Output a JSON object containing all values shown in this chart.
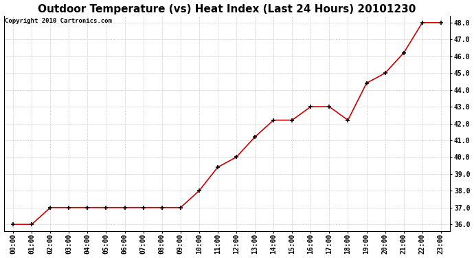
{
  "title": "Outdoor Temperature (vs) Heat Index (Last 24 Hours) 20101230",
  "copyright": "Copyright 2010 Cartronics.com",
  "x_labels": [
    "00:00",
    "01:00",
    "02:00",
    "03:00",
    "04:00",
    "05:00",
    "06:00",
    "07:00",
    "08:00",
    "09:00",
    "10:00",
    "11:00",
    "12:00",
    "13:00",
    "14:00",
    "15:00",
    "16:00",
    "17:00",
    "18:00",
    "19:00",
    "20:00",
    "21:00",
    "22:00",
    "23:00"
  ],
  "y_values": [
    36.0,
    36.0,
    37.0,
    37.0,
    37.0,
    37.0,
    37.0,
    37.0,
    37.0,
    37.0,
    38.0,
    39.4,
    40.0,
    41.2,
    42.2,
    42.2,
    43.0,
    43.0,
    42.2,
    44.4,
    45.0,
    46.2,
    48.0,
    48.0
  ],
  "line_color": "#cc0000",
  "marker": "+",
  "marker_size": 5,
  "marker_color": "#000000",
  "bg_color": "#ffffff",
  "grid_color": "#cccccc",
  "ylim": [
    35.6,
    48.4
  ],
  "yticks": [
    36.0,
    37.0,
    38.0,
    39.0,
    40.0,
    41.0,
    42.0,
    43.0,
    44.0,
    45.0,
    46.0,
    47.0,
    48.0
  ],
  "title_fontsize": 11,
  "copyright_fontsize": 6.5,
  "tick_fontsize": 7,
  "line_width": 1.2
}
